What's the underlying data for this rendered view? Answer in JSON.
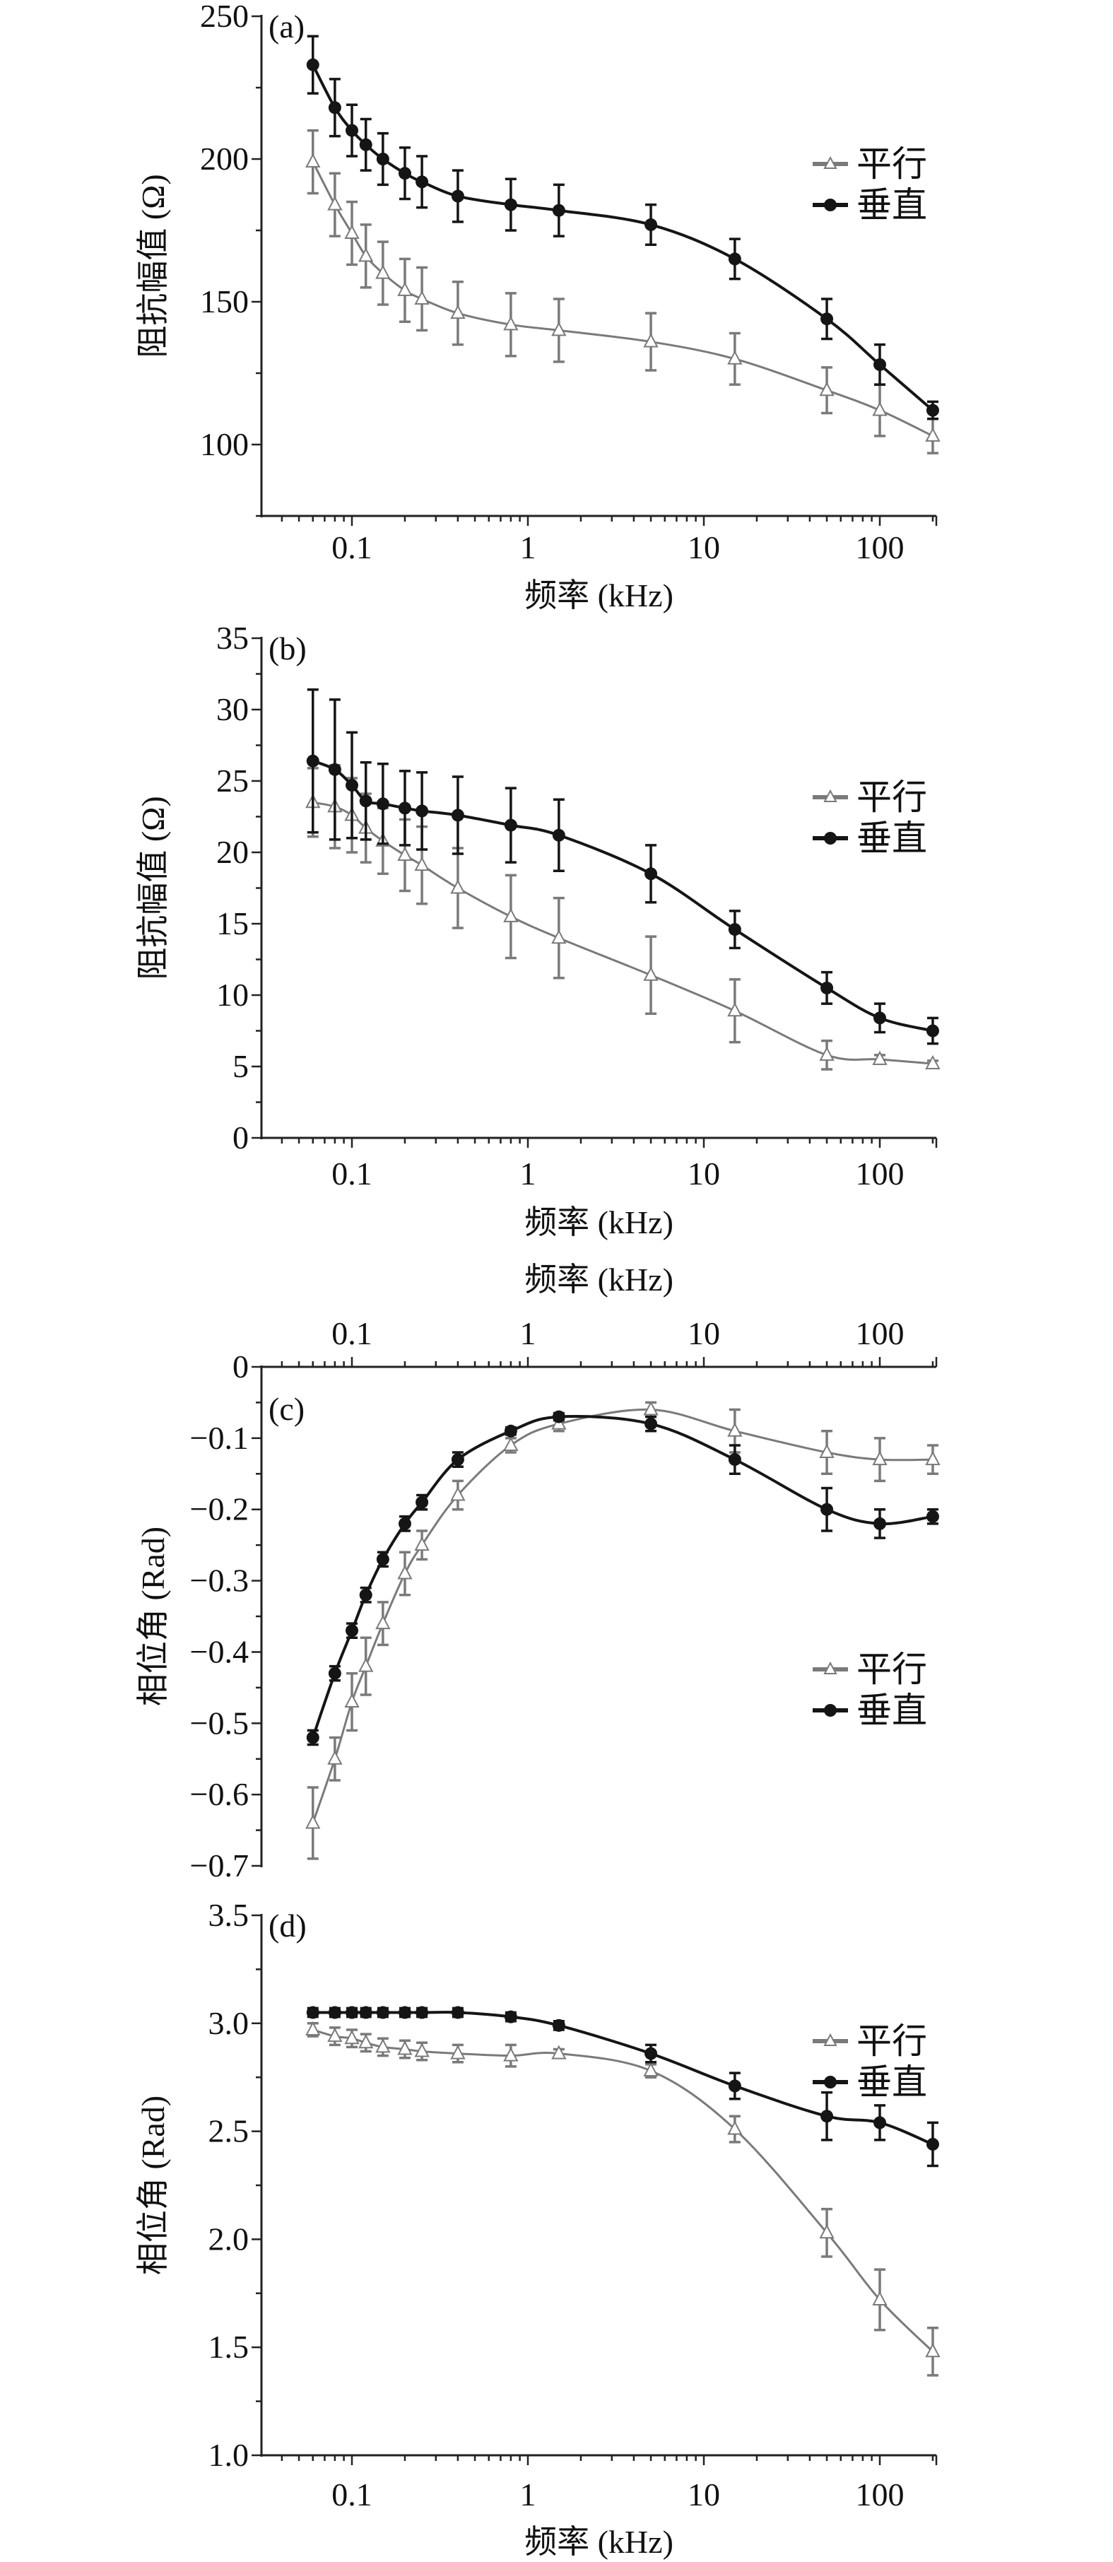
{
  "chart_data": [
    {
      "type": "line",
      "panel_label": "(a)",
      "xlabel": "频率 (kHz)",
      "ylabel": "阻抗幅值 (Ω)",
      "xscale": "log",
      "xlim": [
        0.03,
        220
      ],
      "ylim": [
        75,
        250
      ],
      "xaxis_position": "bottom",
      "xticks": [
        {
          "v": 0.1,
          "label": "0.1"
        },
        {
          "v": 1,
          "label": "1"
        },
        {
          "v": 10,
          "label": "10"
        },
        {
          "v": 100,
          "label": "100"
        }
      ],
      "yticks": [
        {
          "v": 100,
          "label": "100"
        },
        {
          "v": 150,
          "label": "150"
        },
        {
          "v": 200,
          "label": "200"
        },
        {
          "v": 250,
          "label": "250"
        }
      ],
      "yminor_step": 25,
      "legend_position": "right",
      "x": [
        0.06,
        0.08,
        0.1,
        0.12,
        0.15,
        0.2,
        0.25,
        0.4,
        0.8,
        1.5,
        5,
        15,
        50,
        100,
        200
      ],
      "series": [
        {
          "name": "平行",
          "marker": "triangle",
          "color": "#7a7a7a",
          "values": [
            199,
            184,
            174,
            166,
            160,
            154,
            151,
            146,
            142,
            140,
            136,
            130,
            119,
            112,
            103
          ],
          "err": [
            11,
            11,
            11,
            11,
            11,
            11,
            11,
            11,
            11,
            11,
            10,
            9,
            8,
            9,
            6
          ]
        },
        {
          "name": "垂直",
          "marker": "circle",
          "color": "#151515",
          "values": [
            233,
            218,
            210,
            205,
            200,
            195,
            192,
            187,
            184,
            182,
            177,
            165,
            144,
            128,
            112
          ],
          "err": [
            10,
            10,
            9,
            9,
            9,
            9,
            9,
            9,
            9,
            9,
            7,
            7,
            7,
            7,
            3
          ]
        }
      ]
    },
    {
      "type": "line",
      "panel_label": "(b)",
      "xlabel": "频率 (kHz)",
      "ylabel": "阻抗幅值 (Ω)",
      "xscale": "log",
      "xlim": [
        0.03,
        220
      ],
      "ylim": [
        0,
        35
      ],
      "xaxis_position": "bottom",
      "xticks": [
        {
          "v": 0.1,
          "label": "0.1"
        },
        {
          "v": 1,
          "label": "1"
        },
        {
          "v": 10,
          "label": "10"
        },
        {
          "v": 100,
          "label": "100"
        }
      ],
      "yticks": [
        {
          "v": 0,
          "label": "0"
        },
        {
          "v": 5,
          "label": "5"
        },
        {
          "v": 10,
          "label": "10"
        },
        {
          "v": 15,
          "label": "15"
        },
        {
          "v": 20,
          "label": "20"
        },
        {
          "v": 25,
          "label": "25"
        },
        {
          "v": 30,
          "label": "30"
        },
        {
          "v": 35,
          "label": "35"
        }
      ],
      "yminor_step": 2.5,
      "legend_position": "right",
      "x": [
        0.06,
        0.08,
        0.1,
        0.12,
        0.15,
        0.2,
        0.25,
        0.4,
        0.8,
        1.5,
        5,
        15,
        50,
        100,
        200
      ],
      "series": [
        {
          "name": "平行",
          "marker": "triangle",
          "color": "#7a7a7a",
          "values": [
            23.5,
            23.2,
            22.6,
            21.7,
            20.8,
            19.8,
            19.1,
            17.5,
            15.5,
            14.0,
            11.4,
            8.9,
            5.8,
            5.5,
            5.2
          ],
          "err": [
            2.4,
            2.9,
            2.6,
            2.4,
            2.3,
            2.5,
            2.7,
            2.8,
            2.9,
            2.8,
            2.7,
            2.2,
            1.0,
            0.3,
            0.2
          ]
        },
        {
          "name": "垂直",
          "marker": "circle",
          "color": "#151515",
          "values": [
            26.4,
            25.8,
            24.7,
            23.6,
            23.4,
            23.1,
            22.9,
            22.6,
            21.9,
            21.2,
            18.5,
            14.6,
            10.5,
            8.4,
            7.5
          ],
          "err": [
            5.0,
            4.9,
            3.7,
            2.7,
            2.8,
            2.6,
            2.7,
            2.7,
            2.6,
            2.5,
            2.0,
            1.3,
            1.1,
            1.0,
            0.9
          ]
        }
      ]
    },
    {
      "type": "line",
      "panel_label": "(c)",
      "xlabel": "频率 (kHz)",
      "ylabel": "相位角 (Rad)",
      "xscale": "log",
      "xlim": [
        0.03,
        220
      ],
      "ylim": [
        -0.7,
        0
      ],
      "xaxis_position": "top",
      "xticks": [
        {
          "v": 0.1,
          "label": "0.1"
        },
        {
          "v": 1,
          "label": "1"
        },
        {
          "v": 10,
          "label": "10"
        },
        {
          "v": 100,
          "label": "100"
        }
      ],
      "yticks": [
        {
          "v": 0,
          "label": "0"
        },
        {
          "v": -0.1,
          "label": "−0.1"
        },
        {
          "v": -0.2,
          "label": "−0.2"
        },
        {
          "v": -0.3,
          "label": "−0.3"
        },
        {
          "v": -0.4,
          "label": "−0.4"
        },
        {
          "v": -0.5,
          "label": "−0.5"
        },
        {
          "v": -0.6,
          "label": "−0.6"
        },
        {
          "v": -0.7,
          "label": "−0.7"
        }
      ],
      "yminor_step": 0.05,
      "legend_position": "right",
      "x": [
        0.06,
        0.08,
        0.1,
        0.12,
        0.15,
        0.2,
        0.25,
        0.4,
        0.8,
        1.5,
        5,
        15,
        50,
        100,
        200
      ],
      "series": [
        {
          "name": "平行",
          "marker": "triangle",
          "color": "#7a7a7a",
          "values": [
            -0.64,
            -0.55,
            -0.47,
            -0.42,
            -0.36,
            -0.29,
            -0.25,
            -0.18,
            -0.11,
            -0.08,
            -0.06,
            -0.09,
            -0.12,
            -0.13,
            -0.13
          ],
          "err": [
            0.05,
            0.03,
            0.04,
            0.04,
            0.03,
            0.03,
            0.02,
            0.02,
            0.01,
            0.01,
            0.01,
            0.03,
            0.03,
            0.03,
            0.02
          ]
        },
        {
          "name": "垂直",
          "marker": "circle",
          "color": "#151515",
          "values": [
            -0.52,
            -0.43,
            -0.37,
            -0.32,
            -0.27,
            -0.22,
            -0.19,
            -0.13,
            -0.09,
            -0.07,
            -0.08,
            -0.13,
            -0.2,
            -0.22,
            -0.21
          ],
          "err": [
            0.01,
            0.01,
            0.01,
            0.01,
            0.01,
            0.01,
            0.01,
            0.01,
            0.005,
            0.005,
            0.01,
            0.02,
            0.03,
            0.02,
            0.01
          ]
        }
      ]
    },
    {
      "type": "line",
      "panel_label": "(d)",
      "xlabel": "频率 (kHz)",
      "ylabel": "相位角 (Rad)",
      "xscale": "log",
      "xlim": [
        0.03,
        220
      ],
      "ylim": [
        1.0,
        3.5
      ],
      "xaxis_position": "bottom",
      "xticks": [
        {
          "v": 0.1,
          "label": "0.1"
        },
        {
          "v": 1,
          "label": "1"
        },
        {
          "v": 10,
          "label": "10"
        },
        {
          "v": 100,
          "label": "100"
        }
      ],
      "yticks": [
        {
          "v": 1.0,
          "label": "1.0"
        },
        {
          "v": 1.5,
          "label": "1.5"
        },
        {
          "v": 2.0,
          "label": "2.0"
        },
        {
          "v": 2.5,
          "label": "2.5"
        },
        {
          "v": 3.0,
          "label": "3.0"
        },
        {
          "v": 3.5,
          "label": "3.5"
        }
      ],
      "yminor_step": 0.25,
      "legend_position": "top-right",
      "x": [
        0.06,
        0.08,
        0.1,
        0.12,
        0.15,
        0.2,
        0.25,
        0.4,
        0.8,
        1.5,
        5,
        15,
        50,
        100,
        200
      ],
      "series": [
        {
          "name": "平行",
          "marker": "triangle",
          "color": "#7a7a7a",
          "values": [
            2.97,
            2.94,
            2.93,
            2.91,
            2.89,
            2.88,
            2.87,
            2.86,
            2.85,
            2.86,
            2.78,
            2.51,
            2.03,
            1.72,
            1.48
          ],
          "err": [
            0.03,
            0.04,
            0.04,
            0.04,
            0.04,
            0.04,
            0.04,
            0.04,
            0.05,
            0.02,
            0.03,
            0.06,
            0.11,
            0.14,
            0.11
          ]
        },
        {
          "name": "垂直",
          "marker": "circle",
          "color": "#151515",
          "values": [
            3.05,
            3.05,
            3.05,
            3.05,
            3.05,
            3.05,
            3.05,
            3.05,
            3.03,
            2.99,
            2.86,
            2.71,
            2.57,
            2.54,
            2.44
          ],
          "err": [
            0.02,
            0.02,
            0.02,
            0.02,
            0.02,
            0.02,
            0.02,
            0.02,
            0.02,
            0.02,
            0.04,
            0.06,
            0.11,
            0.08,
            0.1
          ]
        }
      ]
    }
  ]
}
